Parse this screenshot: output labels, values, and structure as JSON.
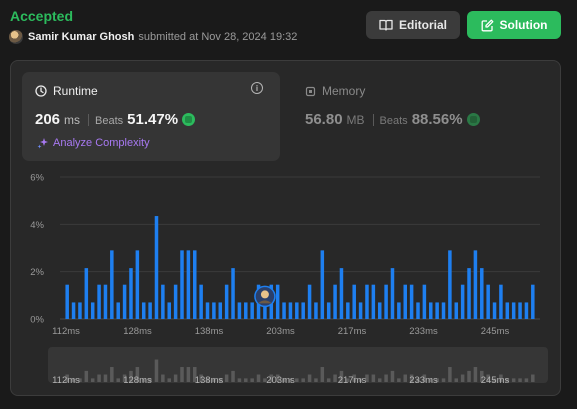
{
  "header": {
    "status": "Accepted",
    "user": "Samir Kumar Ghosh",
    "submitted_text": "submitted at Nov 28, 2024 19:32",
    "editorial_label": "Editorial",
    "solution_label": "Solution"
  },
  "runtime": {
    "title": "Runtime",
    "value": "206",
    "unit": "ms",
    "beats_label": "Beats",
    "beats": "51.47%",
    "analyze_label": "Analyze Complexity"
  },
  "memory": {
    "title": "Memory",
    "value": "56.80",
    "unit": "MB",
    "beats_label": "Beats",
    "beats": "88.56%"
  },
  "colors": {
    "accepted": "#2cbb5d",
    "bar": "#1e7ff0",
    "analyze": "#a879f2"
  },
  "chart_data": {
    "type": "bar",
    "ylim": [
      0,
      6
    ],
    "y_ticks": [
      "6%",
      "4%",
      "2%",
      "0%"
    ],
    "x_tick_labels": [
      "112ms",
      "128ms",
      "138ms",
      "203ms",
      "217ms",
      "233ms",
      "245ms"
    ],
    "values": [
      1.45,
      0.7,
      0.7,
      2.15,
      0.7,
      1.45,
      1.45,
      2.9,
      0.7,
      1.45,
      2.15,
      2.9,
      0.7,
      0.7,
      4.35,
      1.45,
      0.7,
      1.45,
      2.9,
      2.9,
      2.9,
      1.45,
      0.7,
      0.7,
      0.7,
      1.45,
      2.15,
      0.7,
      0.7,
      0.7,
      1.45,
      0.7,
      1.45,
      1.45,
      0.7,
      0.7,
      0.7,
      0.7,
      1.45,
      0.7,
      2.9,
      0.7,
      1.45,
      2.15,
      0.7,
      1.45,
      0.7,
      1.45,
      1.45,
      0.7,
      1.45,
      2.15,
      0.7,
      1.45,
      1.45,
      0.7,
      1.45,
      0.7,
      0.7,
      0.7,
      2.9,
      0.7,
      1.45,
      2.15,
      2.9,
      2.15,
      1.45,
      0.7,
      1.45,
      0.7,
      0.7,
      0.7,
      0.7,
      1.45
    ],
    "current_index": 31
  }
}
